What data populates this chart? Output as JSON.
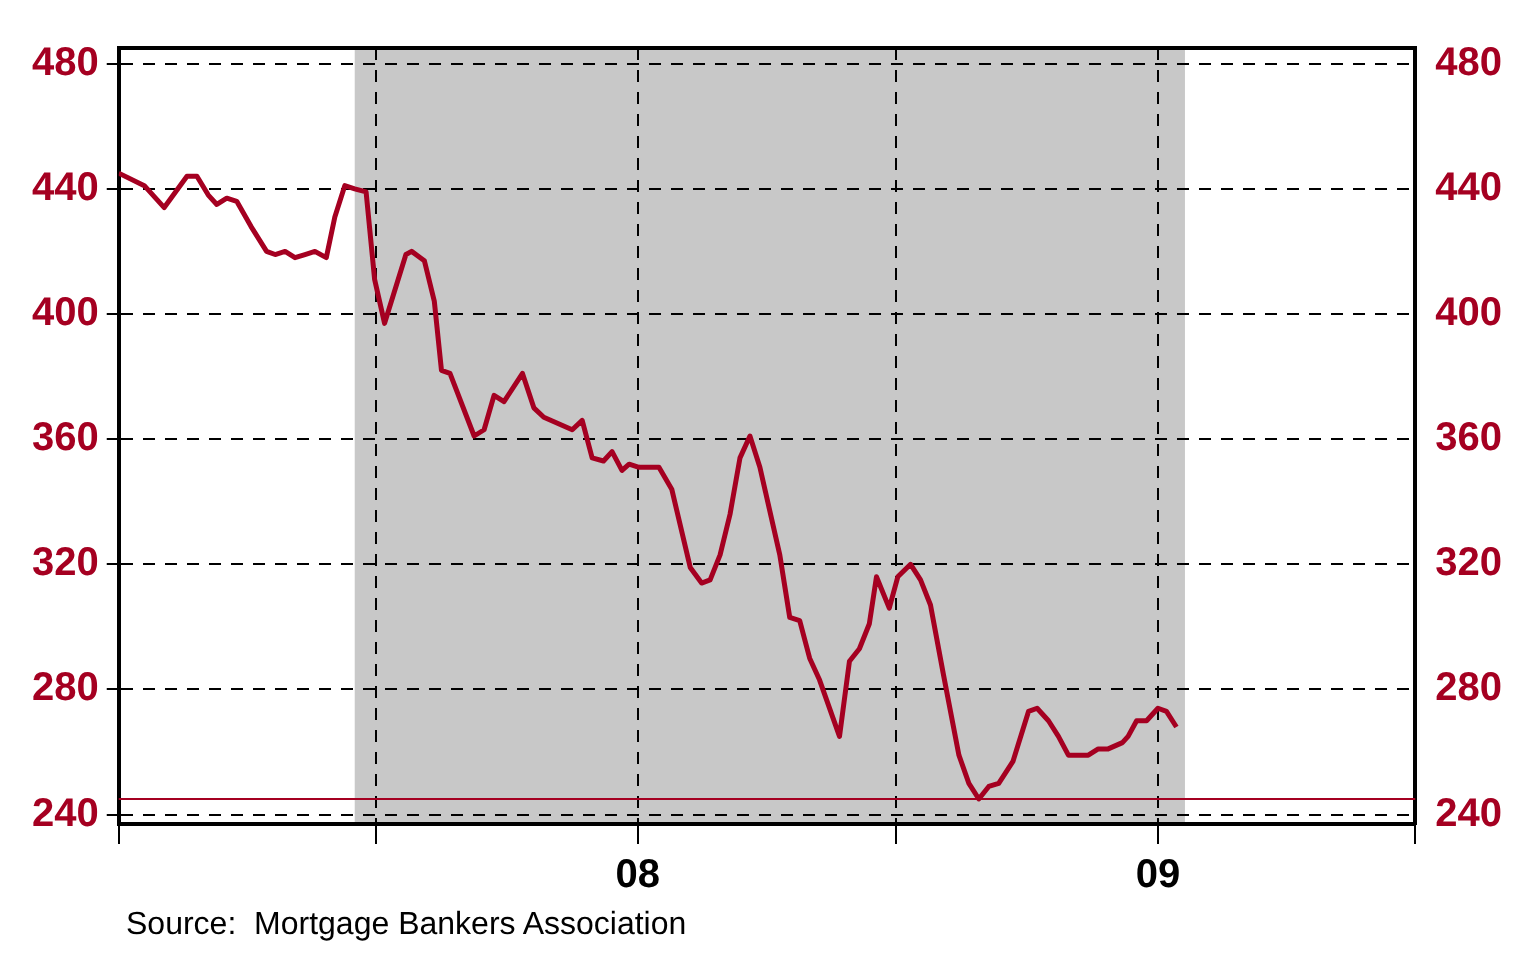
{
  "chart_data": {
    "type": "line",
    "x": [
      "2007-01-01",
      "2007-01-19",
      "2007-02-02",
      "2007-02-18",
      "2007-02-25",
      "2007-03-05",
      "2007-03-11",
      "2007-03-18",
      "2007-03-25",
      "2007-04-04",
      "2007-04-15",
      "2007-04-21",
      "2007-04-28",
      "2007-05-05",
      "2007-05-12",
      "2007-05-19",
      "2007-05-27",
      "2007-06-02",
      "2007-06-09",
      "2007-06-16",
      "2007-06-24",
      "2007-06-30",
      "2007-07-07",
      "2007-07-22",
      "2007-07-26",
      "2007-08-04",
      "2007-08-11",
      "2007-08-16",
      "2007-08-22",
      "2007-09-08",
      "2007-09-15",
      "2007-09-22",
      "2007-09-29",
      "2007-10-12",
      "2007-10-20",
      "2007-10-27",
      "2007-11-16",
      "2007-11-23",
      "2007-11-30",
      "2007-12-08",
      "2007-12-14",
      "2007-12-21",
      "2007-12-26",
      "2008-01-02",
      "2008-01-16",
      "2008-01-25",
      "2008-02-07",
      "2008-02-15",
      "2008-02-21",
      "2008-02-28",
      "2008-03-06",
      "2008-03-13",
      "2008-03-20",
      "2008-03-27",
      "2008-04-10",
      "2008-04-17",
      "2008-04-24",
      "2008-05-01",
      "2008-05-08",
      "2008-05-22",
      "2008-05-29",
      "2008-06-05",
      "2008-06-12",
      "2008-06-17",
      "2008-06-26",
      "2008-07-02",
      "2008-07-11",
      "2008-07-18",
      "2008-07-25",
      "2008-08-03",
      "2008-08-14",
      "2008-08-21",
      "2008-08-28",
      "2008-09-04",
      "2008-09-11",
      "2008-09-21",
      "2008-10-02",
      "2008-10-08",
      "2008-10-16",
      "2008-10-23",
      "2008-10-30",
      "2008-11-13",
      "2008-11-20",
      "2008-11-27",
      "2008-12-07",
      "2008-12-11",
      "2008-12-17",
      "2008-12-24",
      "2009-01-01",
      "2009-01-07",
      "2009-01-14"
    ],
    "series": [
      {
        "color": "#a50021",
        "values": [
          445,
          441,
          434,
          444,
          444,
          438,
          435,
          437,
          436,
          428,
          420,
          419,
          420,
          418,
          419,
          420,
          418,
          431,
          441,
          440,
          439,
          411,
          397,
          419,
          420,
          417,
          404,
          382,
          381,
          361,
          363,
          374,
          372,
          381,
          370,
          367,
          363,
          366,
          354,
          353,
          356,
          350,
          352,
          351,
          351,
          344,
          319,
          314,
          315,
          323,
          336,
          354,
          361,
          351,
          323,
          303,
          302,
          290,
          283,
          265,
          289,
          293,
          301,
          316,
          306,
          316,
          320,
          315,
          307,
          285,
          259,
          250,
          245,
          249,
          250,
          257,
          273,
          274,
          270,
          265,
          259,
          259,
          261,
          261,
          263,
          265,
          270,
          270,
          274,
          273,
          268
        ]
      }
    ],
    "xlim": [
      "2007-01-01",
      "2009-07-01"
    ],
    "xticks": [
      {
        "value": "2007-01-01",
        "label": null
      },
      {
        "value": "2007-07-01",
        "label": null
      },
      {
        "value": "2008-01-01",
        "label": "08"
      },
      {
        "value": "2008-07-01",
        "label": null
      },
      {
        "value": "2009-01-01",
        "label": "09"
      },
      {
        "value": "2009-07-01",
        "label": null
      }
    ],
    "ylim": [
      237,
      485
    ],
    "yticks": [
      240,
      280,
      320,
      360,
      400,
      440,
      480
    ],
    "y2lim": [
      237,
      485
    ],
    "y2ticks": [
      240,
      280,
      320,
      360,
      400,
      440,
      480
    ],
    "bands": [
      {
        "axis": "x",
        "from": "2007-06-16",
        "to": "2009-01-20",
        "color": "#c8c8c8"
      }
    ],
    "ref_lines": [
      {
        "axis": "y",
        "value": 245,
        "color": "#a50021",
        "line_style": "solid"
      }
    ],
    "grid": true,
    "legend": false,
    "marker": "none",
    "line_style": "solid",
    "annotations": [
      "Source:  Mortgage Bankers Association"
    ]
  }
}
